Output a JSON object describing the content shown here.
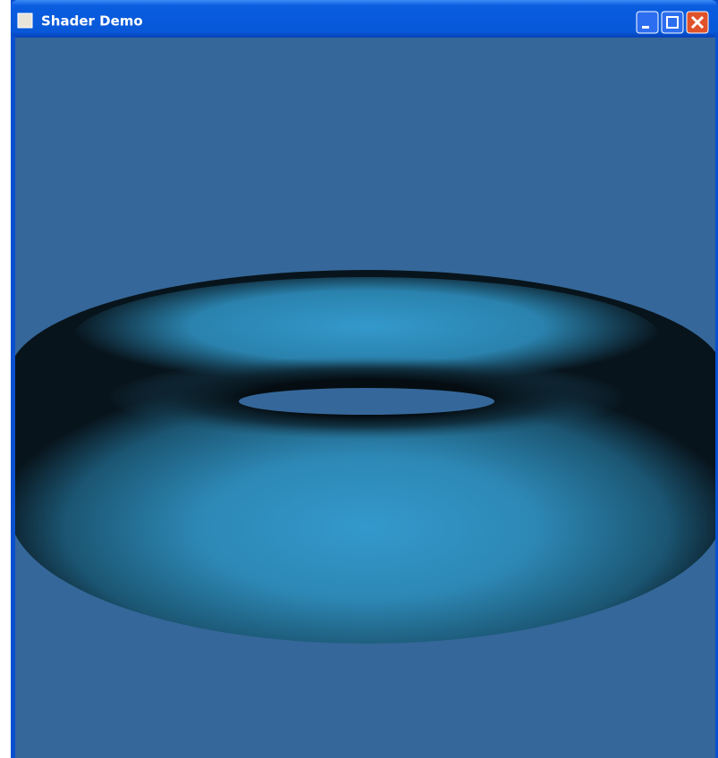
{
  "window": {
    "title": "Shader Demo"
  }
}
